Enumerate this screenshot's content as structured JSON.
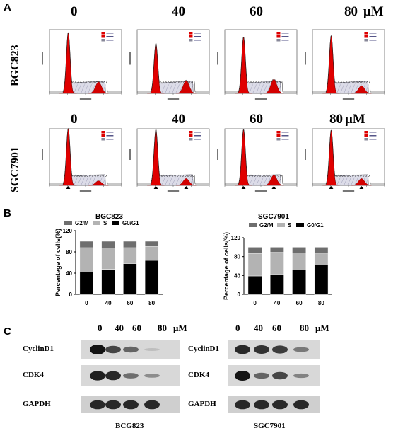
{
  "panel_letters": {
    "a": "A",
    "b": "B",
    "c": "C"
  },
  "panel_a": {
    "doses": [
      "0",
      "40",
      "60",
      "80"
    ],
    "unit": "μM",
    "row_labels": [
      "BGC823",
      "SGC7901"
    ]
  },
  "chart_data": [
    {
      "type": "bar",
      "stacked": true,
      "title": "BGC823",
      "ylabel": "Percentage of cells(%)",
      "xlabel": "",
      "categories": [
        "0",
        "40",
        "60",
        "80"
      ],
      "ylim": [
        0,
        120
      ],
      "yticks": [
        "0",
        "40",
        "80",
        "120"
      ],
      "legend_position": "top",
      "series": [
        {
          "name": "G0/G1",
          "color": "#000000",
          "values": [
            42,
            47,
            58,
            64
          ]
        },
        {
          "name": "S",
          "color": "#b3b3b3",
          "values": [
            46,
            40,
            30,
            26
          ]
        },
        {
          "name": "G2/M",
          "color": "#6e6e6e",
          "values": [
            12,
            13,
            12,
            10
          ]
        }
      ]
    },
    {
      "type": "bar",
      "stacked": true,
      "title": "SGC7901",
      "ylabel": "Percentage of cells(%)",
      "xlabel": "",
      "categories": [
        "0",
        "40",
        "60",
        "80"
      ],
      "ylim": [
        0,
        120
      ],
      "yticks": [
        "0",
        "40",
        "80",
        "120"
      ],
      "legend_position": "top",
      "series": [
        {
          "name": "G0/G1",
          "color": "#000000",
          "values": [
            39,
            42,
            52,
            62
          ]
        },
        {
          "name": "S",
          "color": "#b3b3b3",
          "values": [
            48,
            47,
            36,
            24
          ]
        },
        {
          "name": "G2/M",
          "color": "#6e6e6e",
          "values": [
            13,
            11,
            12,
            14
          ]
        }
      ]
    }
  ],
  "panel_c": {
    "doses": [
      "0",
      "40",
      "60",
      "80"
    ],
    "unit": "μM",
    "proteins": [
      "CyclinD1",
      "CDK4",
      "GAPDH"
    ],
    "cells": [
      "BCG823",
      "SGC7901"
    ],
    "band_intensity": {
      "BCG823": {
        "CyclinD1": [
          1.0,
          0.75,
          0.6,
          0.15
        ],
        "CDK4": [
          0.95,
          0.9,
          0.55,
          0.4
        ],
        "GAPDH": [
          0.9,
          0.9,
          0.9,
          0.9
        ]
      },
      "SGC7901": {
        "CyclinD1": [
          0.9,
          0.85,
          0.8,
          0.5
        ],
        "CDK4": [
          1.0,
          0.6,
          0.75,
          0.45
        ],
        "GAPDH": [
          0.9,
          0.9,
          0.9,
          0.9
        ]
      }
    }
  }
}
